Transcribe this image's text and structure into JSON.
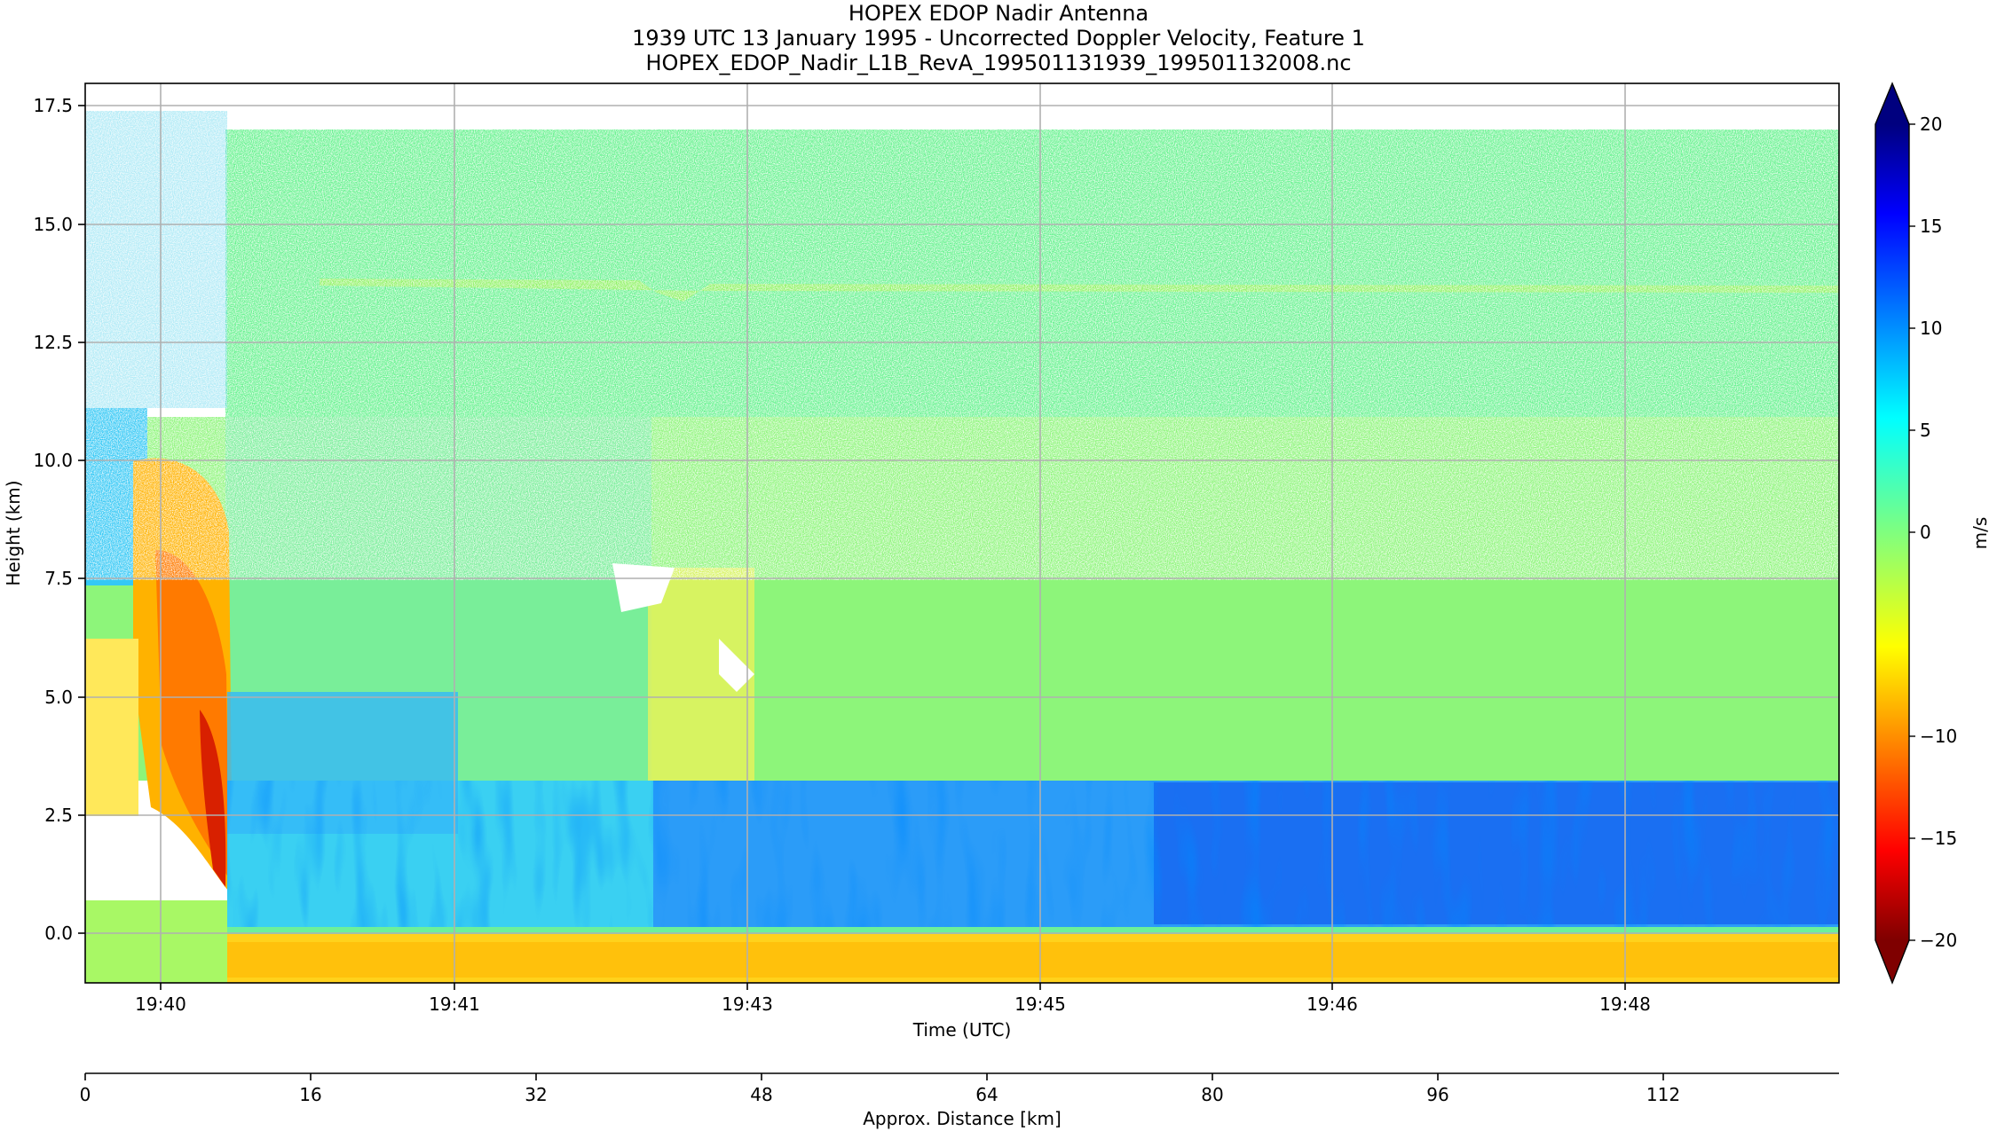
{
  "chart_data": {
    "type": "heatmap",
    "title_lines": [
      "HOPEX EDOP Nadir Antenna",
      "1939 UTC 13 January 1995 - Uncorrected Doppler Velocity, Feature 1",
      "HOPEX_EDOP_Nadir_L1B_RevA_199501131939_199501132008.nc"
    ],
    "xlabel": "Time (UTC)",
    "ylabel": "Height (km)",
    "x_ticks": [
      "19:40",
      "19:41",
      "19:43",
      "19:45",
      "19:46",
      "19:48"
    ],
    "y_ticks": [
      "0.0",
      "2.5",
      "5.0",
      "7.5",
      "10.0",
      "12.5",
      "15.0",
      "17.5"
    ],
    "ylim": [
      -1.0,
      18.0
    ],
    "grid": true,
    "secondary_xlabel": "Approx. Distance [km]",
    "secondary_x_ticks": [
      "0",
      "16",
      "32",
      "48",
      "64",
      "80",
      "96",
      "112"
    ],
    "secondary_xlim": [
      0,
      124.5
    ],
    "colorbar": {
      "label": "m/s",
      "range": [
        -20,
        20
      ],
      "ticks": [
        "20",
        "15",
        "10",
        "5",
        "0",
        "−10",
        "−15",
        "−20"
      ],
      "colormap": "jet_r",
      "extend": "both"
    },
    "field_summary": [
      {
        "region": "surface echo",
        "height_km": [
          -1.0,
          0.0
        ],
        "velocity_ms": -8
      },
      {
        "region": "low-level updraft layer",
        "height_km": [
          0.2,
          3.2
        ],
        "velocity_ms": 8
      },
      {
        "region": "convective core near 19:40",
        "height_km": [
          1.0,
          9.5
        ],
        "velocity_ms": -12
      },
      {
        "region": "mid/upper cloud",
        "height_km": [
          3.2,
          10.5
        ],
        "velocity_ms": 0
      },
      {
        "region": "cloud-top noise",
        "height_km": [
          10.5,
          17.0
        ],
        "velocity_ms": 1
      },
      {
        "region": "thin layer",
        "height_km": [
          13.6,
          13.9
        ],
        "velocity_ms": -2
      }
    ]
  },
  "colors": {
    "grid": "#b0b0b0",
    "jet_stops": [
      "#7f0000",
      "#ff0000",
      "#ff7f00",
      "#ffff00",
      "#7fff7f",
      "#00ffff",
      "#007fff",
      "#0000ff",
      "#00007f"
    ]
  }
}
